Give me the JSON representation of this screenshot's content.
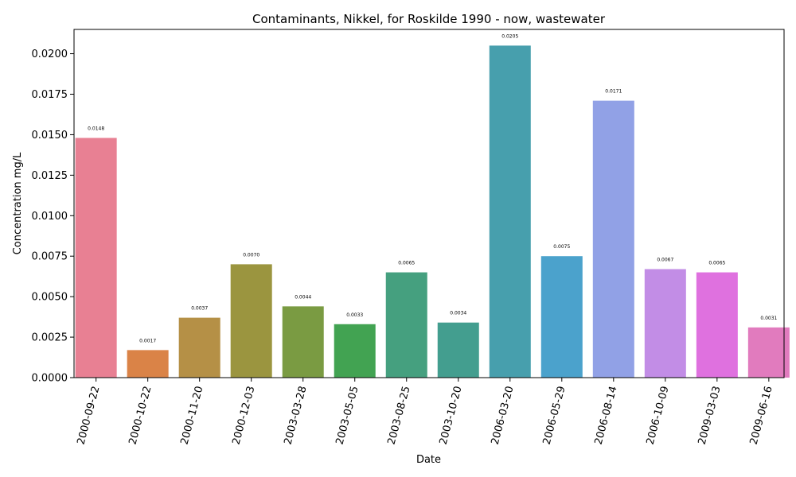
{
  "chart_data": {
    "type": "bar",
    "title": "Contaminants, Nikkel, for Roskilde 1990 - now, wastewater",
    "xlabel": "Date",
    "ylabel": "Concentration mg/L",
    "ylim": [
      0,
      0.0215
    ],
    "yticks": [
      "0.0000",
      "0.0025",
      "0.0050",
      "0.0075",
      "0.0100",
      "0.0125",
      "0.0150",
      "0.0175",
      "0.0200"
    ],
    "ytick_values": [
      0,
      0.0025,
      0.005,
      0.0075,
      0.01,
      0.0125,
      0.015,
      0.0175,
      0.02
    ],
    "grid": false,
    "categories": [
      "2000-09-22",
      "2000-10-22",
      "2000-11-20",
      "2000-12-03",
      "2003-03-28",
      "2003-05-05",
      "2003-08-25",
      "2003-10-20",
      "2006-03-20",
      "2006-05-29",
      "2006-08-14",
      "2006-10-09",
      "2009-03-03",
      "2009-06-16"
    ],
    "values": [
      0.0148,
      0.0017,
      0.0037,
      0.007,
      0.0044,
      0.0033,
      0.0065,
      0.0034,
      0.0205,
      0.0075,
      0.0171,
      0.0067,
      0.0065,
      0.0031
    ],
    "data_labels": [
      "0.0148",
      "0.0017",
      "0.0037",
      "0.0070",
      "0.0044",
      "0.0033",
      "0.0065",
      "0.0034",
      "0.0205",
      "0.0075",
      "0.0171",
      "0.0067",
      "0.0065",
      "0.0031"
    ],
    "colors": [
      "#e88093",
      "#da8347",
      "#b59046",
      "#9b953f",
      "#7a9b42",
      "#42a352",
      "#45a07f",
      "#439e8f",
      "#479fad",
      "#4ba2cc",
      "#91a1e6",
      "#c28de6",
      "#df71df",
      "#e17bbe"
    ]
  }
}
